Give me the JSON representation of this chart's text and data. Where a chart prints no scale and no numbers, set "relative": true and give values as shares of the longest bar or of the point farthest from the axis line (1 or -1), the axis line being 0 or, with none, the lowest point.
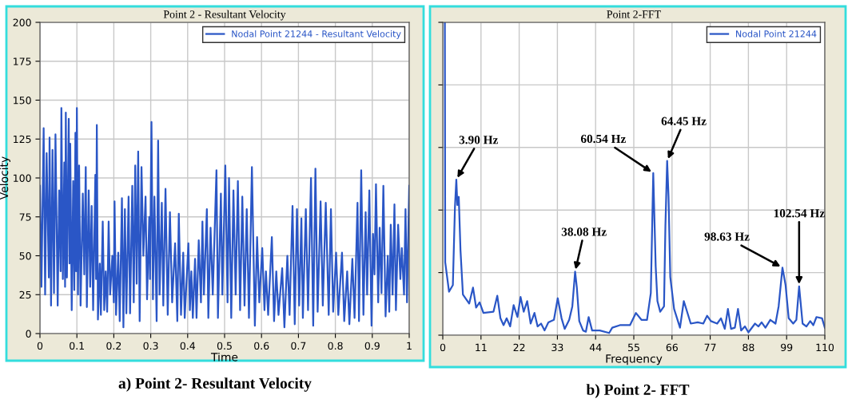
{
  "chart_data": [
    {
      "type": "line",
      "title": "Point 2 - Resultant Velocity",
      "xlabel": "Time",
      "ylabel": "Velocity",
      "annotations": [
        "a) Point 2- Resultant Velocity"
      ],
      "xlim": [
        0,
        1
      ],
      "ylim": [
        0,
        200
      ],
      "xticks": [
        0,
        0.1,
        0.2,
        0.3,
        0.4,
        0.5,
        0.6,
        0.7,
        0.8,
        0.9,
        1
      ],
      "yticks": [
        0,
        25,
        50,
        75,
        100,
        125,
        150,
        175,
        200
      ],
      "grid": true,
      "legend": "top right",
      "marker": "none",
      "line_style": "solid",
      "series": [
        {
          "name": "Nodal Point 21244 - Resultant Velocity",
          "color": "#2a56c6",
          "x": [
            0.0,
            0.004,
            0.01,
            0.014,
            0.018,
            0.024,
            0.026,
            0.03,
            0.034,
            0.038,
            0.042,
            0.048,
            0.052,
            0.056,
            0.058,
            0.062,
            0.066,
            0.068,
            0.07,
            0.073,
            0.078,
            0.08,
            0.082,
            0.086,
            0.09,
            0.093,
            0.096,
            0.098,
            0.1,
            0.103,
            0.106,
            0.11,
            0.116,
            0.12,
            0.124,
            0.127,
            0.132,
            0.136,
            0.14,
            0.144,
            0.15,
            0.152,
            0.154,
            0.157,
            0.162,
            0.165,
            0.17,
            0.174,
            0.178,
            0.182,
            0.186,
            0.19,
            0.196,
            0.2,
            0.202,
            0.206,
            0.212,
            0.216,
            0.222,
            0.226,
            0.23,
            0.234,
            0.24,
            0.244,
            0.25,
            0.254,
            0.258,
            0.262,
            0.266,
            0.27,
            0.275,
            0.28,
            0.286,
            0.29,
            0.296,
            0.298,
            0.302,
            0.306,
            0.31,
            0.316,
            0.32,
            0.324,
            0.33,
            0.334,
            0.34,
            0.346,
            0.352,
            0.358,
            0.366,
            0.372,
            0.376,
            0.382,
            0.388,
            0.392,
            0.402,
            0.406,
            0.41,
            0.414,
            0.42,
            0.424,
            0.43,
            0.436,
            0.44,
            0.444,
            0.452,
            0.456,
            0.462,
            0.468,
            0.478,
            0.482,
            0.49,
            0.494,
            0.502,
            0.508,
            0.512,
            0.518,
            0.524,
            0.53,
            0.536,
            0.542,
            0.548,
            0.554,
            0.56,
            0.566,
            0.574,
            0.582,
            0.588,
            0.594,
            0.602,
            0.608,
            0.612,
            0.618,
            0.628,
            0.634,
            0.64,
            0.646,
            0.656,
            0.662,
            0.67,
            0.676,
            0.684,
            0.69,
            0.696,
            0.702,
            0.708,
            0.712,
            0.72,
            0.726,
            0.734,
            0.74,
            0.746,
            0.752,
            0.76,
            0.766,
            0.774,
            0.782,
            0.788,
            0.794,
            0.802,
            0.808,
            0.818,
            0.824,
            0.832,
            0.838,
            0.846,
            0.852,
            0.86,
            0.864,
            0.87,
            0.876,
            0.882,
            0.886,
            0.892,
            0.898,
            0.902,
            0.906,
            0.91,
            0.916,
            0.92,
            0.925,
            0.93,
            0.936,
            0.942,
            0.946,
            0.95,
            0.955,
            0.96,
            0.964,
            0.97,
            0.976,
            0.98,
            0.986,
            0.99,
            0.994,
            1.0
          ],
          "values": [
            95,
            30,
            132,
            25,
            116,
            36,
            126,
            18,
            118,
            26,
            128,
            18,
            92,
            40,
            145,
            35,
            110,
            30,
            142,
            36,
            138,
            45,
            122,
            15,
            98,
            28,
            129,
            40,
            145,
            25,
            108,
            18,
            90,
            38,
            107,
            17,
            92,
            30,
            82,
            15,
            102,
            35,
            134,
            9,
            45,
            12,
            72,
            15,
            40,
            14,
            72,
            25,
            50,
            20,
            85,
            12,
            52,
            8,
            87,
            4,
            80,
            13,
            88,
            13,
            95,
            20,
            108,
            32,
            117,
            8,
            107,
            50,
            88,
            22,
            75,
            35,
            136,
            22,
            88,
            8,
            124,
            25,
            84,
            18,
            93,
            12,
            78,
            20,
            58,
            8,
            77,
            12,
            52,
            10,
            58,
            15,
            40,
            10,
            48,
            10,
            60,
            20,
            72,
            25,
            80,
            10,
            68,
            25,
            105,
            10,
            90,
            25,
            108,
            20,
            100,
            10,
            92,
            25,
            98,
            15,
            88,
            18,
            80,
            10,
            107,
            5,
            62,
            20,
            55,
            15,
            40,
            12,
            62,
            8,
            40,
            12,
            42,
            4,
            50,
            12,
            82,
            6,
            80,
            18,
            74,
            10,
            80,
            15,
            100,
            5,
            106,
            14,
            85,
            18,
            84,
            12,
            80,
            14,
            52,
            12,
            52,
            8,
            40,
            6,
            48,
            10,
            84,
            8,
            105,
            12,
            78,
            25,
            92,
            5,
            64,
            38,
            96,
            20,
            68,
            26,
            95,
            11,
            50,
            14,
            70,
            25,
            83,
            15,
            70,
            35,
            55,
            25,
            80,
            20,
            95
          ]
        }
      ]
    },
    {
      "type": "line",
      "title": "Point 2-FFT",
      "xlabel": "Frequency",
      "relative": true,
      "tick_labels": "x",
      "xlim": [
        0,
        110
      ],
      "xticks": [
        0,
        11,
        22,
        33,
        44,
        55,
        66,
        77,
        88,
        99,
        110
      ],
      "grid": true,
      "legend": "top right",
      "marker": "none",
      "line_style": "solid",
      "annotations": [
        {
          "text": "3.90 Hz",
          "x": 3.9,
          "y": 0.497
        },
        {
          "text": "38.08 Hz",
          "x": 38.1,
          "y": 0.203
        },
        {
          "text": "60.54 Hz",
          "x": 60.6,
          "y": 0.518
        },
        {
          "text": "64.45 Hz",
          "x": 64.6,
          "y": 0.557
        },
        {
          "text": "98.63 Hz",
          "x": 97.8,
          "y": 0.216
        },
        {
          "text": "102.54 Hz",
          "x": 102.6,
          "y": 0.156
        },
        "b) Point 2- FFT"
      ],
      "series": [
        {
          "name": "Nodal Point 21244",
          "color": "#2a56c6",
          "x": [
            0.6,
            0.7,
            1.8,
            2.9,
            3.5,
            3.9,
            4.2,
            4.6,
            5.1,
            5.8,
            7.6,
            8.7,
            9.6,
            10.6,
            11.7,
            14.6,
            15.7,
            16.6,
            17.5,
            18.4,
            19.4,
            20.4,
            21.5,
            22.4,
            23.3,
            24.3,
            25.3,
            26.4,
            27.3,
            28.3,
            29.3,
            30.4,
            32.0,
            33.1,
            34.2,
            35.1,
            36.4,
            37.3,
            38.1,
            38.6,
            39.3,
            40.4,
            41.2,
            42.0,
            43.0,
            45.2,
            47.9,
            48.8,
            51.0,
            53.9,
            55.6,
            57.2,
            58.8,
            59.9,
            60.6,
            60.9,
            61.3,
            61.8,
            62.6,
            63.7,
            64.1,
            64.6,
            65.0,
            65.5,
            66.6,
            68.3,
            69.4,
            71.4,
            73.4,
            75.0,
            76.1,
            77.2,
            79.0,
            80.1,
            81.2,
            82.1,
            83.0,
            84.1,
            85.0,
            85.9,
            87.0,
            88.0,
            89.9,
            90.9,
            91.8,
            92.9,
            94.3,
            95.8,
            96.7,
            97.8,
            98.7,
            99.6,
            100.9,
            101.8,
            102.6,
            103.6,
            104.7,
            105.8,
            106.7,
            107.6,
            109.2,
            110
          ],
          "values": [
            1,
            0.233,
            0.139,
            0.16,
            0.408,
            0.497,
            0.416,
            0.442,
            0.271,
            0.13,
            0.101,
            0.152,
            0.088,
            0.105,
            0.071,
            0.075,
            0.126,
            0.054,
            0.032,
            0.054,
            0.028,
            0.096,
            0.058,
            0.122,
            0.075,
            0.109,
            0.037,
            0.071,
            0.028,
            0.037,
            0.015,
            0.041,
            0.049,
            0.118,
            0.054,
            0.02,
            0.049,
            0.092,
            0.203,
            0.152,
            0.045,
            0.015,
            0.011,
            0.058,
            0.015,
            0.015,
            0.007,
            0.024,
            0.032,
            0.032,
            0.071,
            0.049,
            0.049,
            0.135,
            0.518,
            0.39,
            0.22,
            0.109,
            0.075,
            0.092,
            0.348,
            0.557,
            0.442,
            0.186,
            0.084,
            0.024,
            0.109,
            0.037,
            0.041,
            0.037,
            0.062,
            0.045,
            0.037,
            0.054,
            0.02,
            0.084,
            0.02,
            0.024,
            0.084,
            0.015,
            0.028,
            0.009,
            0.037,
            0.028,
            0.041,
            0.024,
            0.049,
            0.037,
            0.092,
            0.216,
            0.16,
            0.054,
            0.037,
            0.049,
            0.156,
            0.037,
            0.028,
            0.045,
            0.032,
            0.058,
            0.054,
            0.024
          ]
        }
      ]
    }
  ]
}
